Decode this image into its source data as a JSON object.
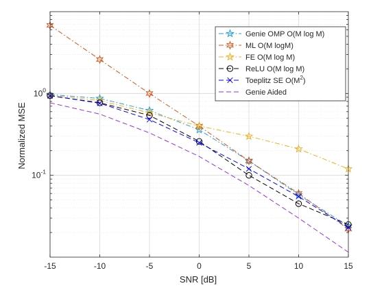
{
  "chart_data": {
    "type": "line",
    "x_scale": "linear",
    "y_scale": "log",
    "xlabel": "SNR [dB]",
    "ylabel": "Normalized MSE",
    "xlim": [
      -15,
      15
    ],
    "ylim": [
      0.01,
      10
    ],
    "x": [
      -15,
      -10,
      -5,
      0,
      5,
      10,
      15
    ],
    "x_ticks": [
      "-15",
      "-10",
      "-5",
      "0",
      "5",
      "10",
      "15"
    ],
    "y_ticks": [
      {
        "value": 1,
        "base": "10",
        "exp": "0"
      },
      {
        "value": 0.1,
        "base": "10",
        "exp": "-1"
      }
    ],
    "grid": true,
    "legend_position": "top-right",
    "series": [
      {
        "name": "Genie OMP O(M log M)",
        "color": "#1f9ed1",
        "line": "dashdot",
        "marker": "star-5",
        "values": [
          0.97,
          0.87,
          0.62,
          0.36,
          0.15,
          0.058,
          0.024
        ]
      },
      {
        "name": "ML O(M logM)",
        "color": "#d95319",
        "line": "dashdot",
        "marker": "star-6",
        "values": [
          6.8,
          2.6,
          1.0,
          0.4,
          0.15,
          0.06,
          0.022
        ]
      },
      {
        "name": "FE O(M log M)",
        "color": "#edb120",
        "line": "dashdot",
        "marker": "star-5",
        "values": [
          0.95,
          0.82,
          0.58,
          0.4,
          0.3,
          0.21,
          0.12
        ]
      },
      {
        "name": "ReLU O(M log M)",
        "color": "#000000",
        "line": "dashed",
        "marker": "circle",
        "values": [
          0.94,
          0.77,
          0.54,
          0.26,
          0.1,
          0.045,
          0.025
        ]
      },
      {
        "name": "Toeplitz SE O(M",
        "name_sup": "2",
        "name_tail": ")",
        "color": "#0000ff",
        "line": "dashed",
        "marker": "x",
        "values": [
          0.94,
          0.76,
          0.48,
          0.25,
          0.12,
          0.055,
          0.023
        ]
      },
      {
        "name": "Genie Aided",
        "color": "#9b30d9",
        "line": "dashed",
        "marker": "none",
        "values": [
          0.77,
          0.56,
          0.33,
          0.17,
          0.075,
          0.03,
          0.0115
        ]
      }
    ]
  }
}
